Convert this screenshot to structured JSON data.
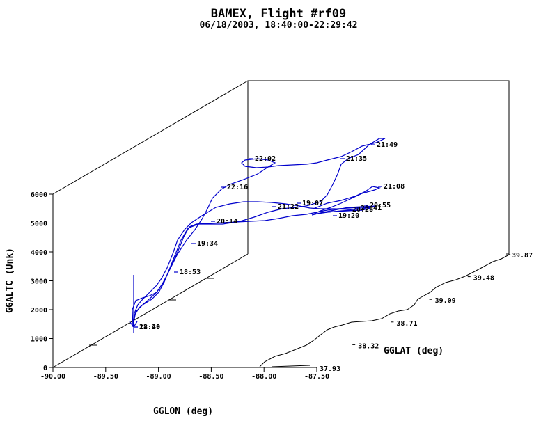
{
  "chart_data": {
    "type": "line",
    "title": "BAMEX, Flight #rf09",
    "subtitle": "06/18/2003, 18:40:00-22:29:42",
    "xlabel": "GGLON (deg)",
    "ylabel": "GGALTC (Unk)",
    "zlabel": "GGLAT (deg)",
    "x_ticks": [
      "-90.00",
      "-89.50",
      "-89.00",
      "-88.50",
      "-88.00",
      "-87.50"
    ],
    "y_ticks": [
      "0",
      "1000",
      "2000",
      "3000",
      "4000",
      "5000",
      "6000"
    ],
    "z_ticks": [
      "37.93",
      "38.32",
      "38.71",
      "39.09",
      "39.48",
      "39.87"
    ],
    "time_labels": [
      {
        "t": "18:53"
      },
      {
        "t": "19:07"
      },
      {
        "t": "19:20"
      },
      {
        "t": "19:34"
      },
      {
        "t": "20:14"
      },
      {
        "t": "20:28"
      },
      {
        "t": "20:41"
      },
      {
        "t": "20:55"
      },
      {
        "t": "21:08"
      },
      {
        "t": "21:22"
      },
      {
        "t": "21:35"
      },
      {
        "t": "21:49"
      },
      {
        "t": "22:02"
      },
      {
        "t": "22:16"
      },
      {
        "t": "18:40"
      },
      {
        "t": "22:29"
      }
    ],
    "series": [
      {
        "color": "#0000cc"
      },
      {
        "color": "#000000"
      }
    ]
  }
}
